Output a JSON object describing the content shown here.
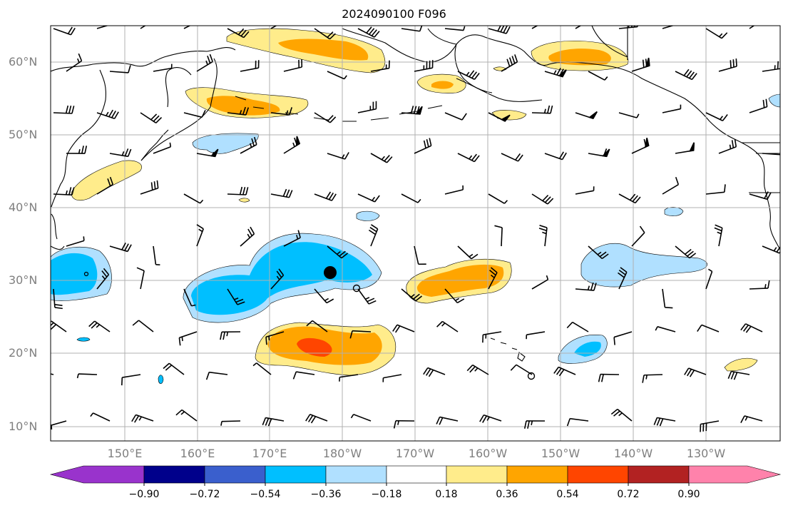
{
  "title": "2024090100 F096",
  "map": {
    "lat_labels": [
      "60°N",
      "50°N",
      "40°N",
      "30°N",
      "20°N",
      "10°N"
    ],
    "lon_labels": [
      "150°E",
      "160°E",
      "170°E",
      "180°W",
      "170°W",
      "160°W",
      "150°W",
      "140°W",
      "130°W"
    ]
  },
  "colorbar": {
    "tick_labels": [
      "−0.90",
      "−0.72",
      "−0.54",
      "−0.36",
      "−0.18",
      "0.18",
      "0.36",
      "0.54",
      "0.72",
      "0.90"
    ],
    "colors": [
      "#9933cc",
      "#00008b",
      "#3a5fcd",
      "#00bfff",
      "#b0e0ff",
      "#ffffff",
      "#ffec8b",
      "#ffa500",
      "#ff4500",
      "#b22222",
      "#ff82ab"
    ]
  },
  "colors": {
    "coast": "#000000",
    "grid": "#b0b0b0",
    "label": "#7f7f7f"
  }
}
